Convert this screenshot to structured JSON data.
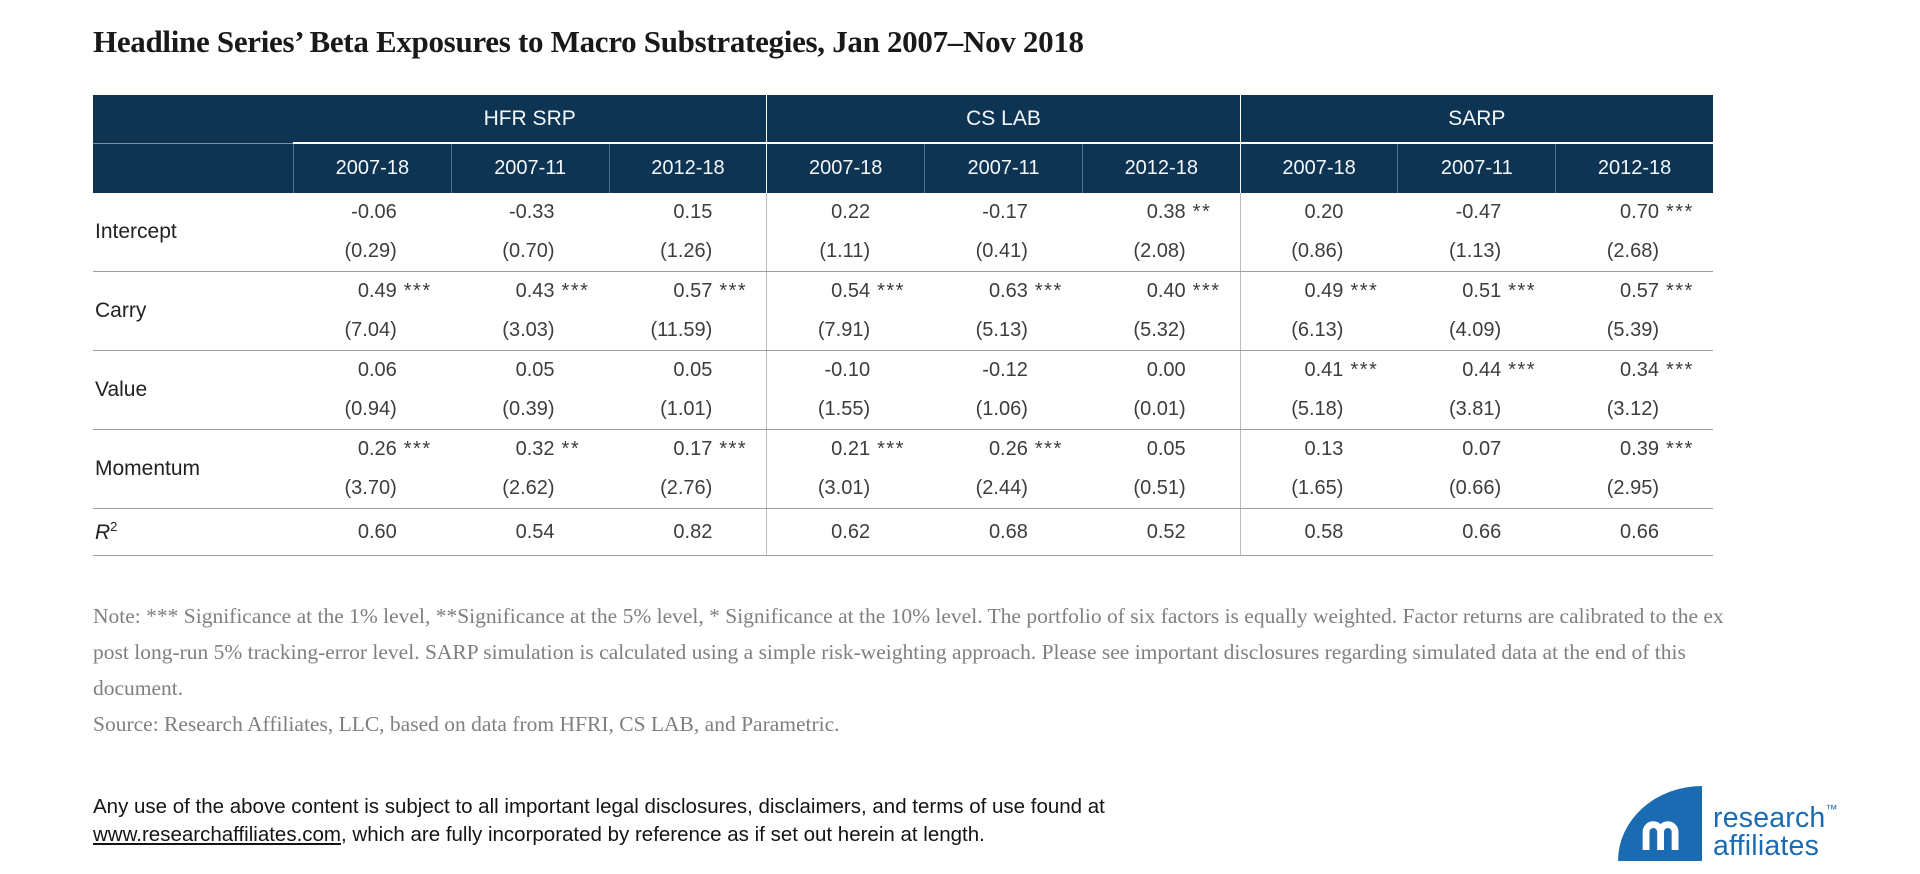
{
  "title": "Headline Series’ Beta Exposures to Macro Substrategies, Jan 2007–Nov 2018",
  "table": {
    "groups": [
      "HFR SRP",
      "CS LAB",
      "SARP"
    ],
    "periods": [
      "2007-18",
      "2007-11",
      "2012-18"
    ],
    "rows": [
      {
        "label": "Intercept",
        "coef": [
          "-0.06",
          "-0.33",
          "0.15",
          "0.22",
          "-0.17",
          "0.38",
          "0.20",
          "-0.47",
          "0.70"
        ],
        "stars": [
          "",
          "",
          "",
          "",
          "",
          "**",
          "",
          "",
          "***"
        ],
        "tstat": [
          "(0.29)",
          "(0.70)",
          "(1.26)",
          "(1.11)",
          "(0.41)",
          "(2.08)",
          "(0.86)",
          "(1.13)",
          "(2.68)"
        ]
      },
      {
        "label": "Carry",
        "coef": [
          "0.49",
          "0.43",
          "0.57",
          "0.54",
          "0.63",
          "0.40",
          "0.49",
          "0.51",
          "0.57"
        ],
        "stars": [
          "***",
          "***",
          "***",
          "***",
          "***",
          "***",
          "***",
          "***",
          "***"
        ],
        "tstat": [
          "(7.04)",
          "(3.03)",
          "(11.59)",
          "(7.91)",
          "(5.13)",
          "(5.32)",
          "(6.13)",
          "(4.09)",
          "(5.39)"
        ]
      },
      {
        "label": "Value",
        "coef": [
          "0.06",
          "0.05",
          "0.05",
          "-0.10",
          "-0.12",
          "0.00",
          "0.41",
          "0.44",
          "0.34"
        ],
        "stars": [
          "",
          "",
          "",
          "",
          "",
          "",
          "***",
          "***",
          "***"
        ],
        "tstat": [
          "(0.94)",
          "(0.39)",
          "(1.01)",
          "(1.55)",
          "(1.06)",
          "(0.01)",
          "(5.18)",
          "(3.81)",
          "(3.12)"
        ]
      },
      {
        "label": "Momentum",
        "coef": [
          "0.26",
          "0.32",
          "0.17",
          "0.21",
          "0.26",
          "0.05",
          "0.13",
          "0.07",
          "0.39"
        ],
        "stars": [
          "***",
          "**",
          "***",
          "***",
          "***",
          "",
          "",
          "",
          "***"
        ],
        "tstat": [
          "(3.70)",
          "(2.62)",
          "(2.76)",
          "(3.01)",
          "(2.44)",
          "(0.51)",
          "(1.65)",
          "(0.66)",
          "(2.95)"
        ]
      }
    ],
    "r2": {
      "label_base": "R",
      "label_sup": "2",
      "values": [
        "0.60",
        "0.54",
        "0.82",
        "0.62",
        "0.68",
        "0.52",
        "0.58",
        "0.66",
        "0.66"
      ]
    }
  },
  "note": "Note: *** Significance at the 1% level, **Significance at the 5% level, * Significance at the 10% level. The portfolio of six factors is equally weighted. Factor returns are calibrated  to the ex post long-run 5% tracking-error level. SARP simulation is calculated using a simple risk-weighting approach. Please see important disclosures regarding simulated data at the end of this document.",
  "source": "Source: Research Affiliates, LLC, based on data from HFRI, CS LAB, and Parametric.",
  "legal": {
    "before_link": "Any use of the above content is subject to all important legal disclosures, disclaimers, and terms of use found at ",
    "link": "www.researchaffiliates.com",
    "after_link": ", which are fully incorporated by reference as if set out herein at length."
  },
  "logo": {
    "line1": "research",
    "line2": "affiliates",
    "tm": "™"
  },
  "colors": {
    "header_navy": "#0e3453",
    "logo_blue": "#1b6bb2",
    "note_gray": "#7f7f7f"
  }
}
